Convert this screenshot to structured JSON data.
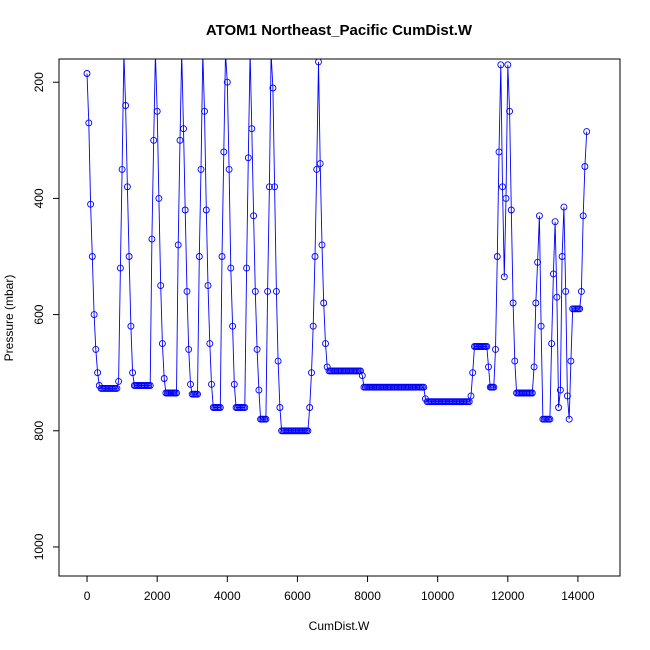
{
  "chart_data": {
    "type": "line",
    "title": "ATOM1 Northeast_Pacific CumDist.W",
    "xlabel": "CumDist.W",
    "ylabel": "Pressure (mbar)",
    "xlim": [
      -800,
      15200
    ],
    "ylim": [
      1050,
      160
    ],
    "y_reversed": true,
    "x_ticks": [
      0,
      2000,
      4000,
      6000,
      8000,
      10000,
      12000,
      14000
    ],
    "y_ticks": [
      200,
      400,
      600,
      800,
      1000
    ],
    "grid": false,
    "legend": "none",
    "marker": "open-circle",
    "series": [
      {
        "color": "#0000ff",
        "keypoints": [
          [
            0,
            185
          ],
          [
            50,
            270
          ],
          [
            100,
            410
          ],
          [
            150,
            500
          ],
          [
            200,
            600
          ],
          [
            250,
            660
          ],
          [
            300,
            700
          ],
          [
            350,
            722
          ],
          [
            400,
            727
          ],
          [
            850,
            727
          ],
          [
            900,
            715
          ],
          [
            950,
            520
          ],
          [
            1000,
            350
          ],
          [
            1050,
            150
          ],
          [
            1100,
            240
          ],
          [
            1150,
            380
          ],
          [
            1200,
            500
          ],
          [
            1250,
            620
          ],
          [
            1300,
            700
          ],
          [
            1350,
            722
          ],
          [
            1800,
            722
          ],
          [
            1850,
            470
          ],
          [
            1900,
            300
          ],
          [
            1950,
            150
          ],
          [
            2000,
            250
          ],
          [
            2050,
            400
          ],
          [
            2100,
            550
          ],
          [
            2150,
            650
          ],
          [
            2200,
            710
          ],
          [
            2250,
            735
          ],
          [
            2550,
            735
          ],
          [
            2600,
            480
          ],
          [
            2650,
            300
          ],
          [
            2700,
            150
          ],
          [
            2750,
            280
          ],
          [
            2800,
            420
          ],
          [
            2850,
            560
          ],
          [
            2900,
            660
          ],
          [
            2950,
            720
          ],
          [
            3000,
            737
          ],
          [
            3150,
            737
          ],
          [
            3200,
            500
          ],
          [
            3250,
            350
          ],
          [
            3300,
            150
          ],
          [
            3350,
            250
          ],
          [
            3400,
            420
          ],
          [
            3450,
            550
          ],
          [
            3500,
            650
          ],
          [
            3550,
            720
          ],
          [
            3600,
            760
          ],
          [
            3800,
            760
          ],
          [
            3850,
            500
          ],
          [
            3900,
            320
          ],
          [
            3950,
            150
          ],
          [
            4000,
            200
          ],
          [
            4050,
            350
          ],
          [
            4100,
            520
          ],
          [
            4150,
            620
          ],
          [
            4200,
            720
          ],
          [
            4250,
            760
          ],
          [
            4500,
            760
          ],
          [
            4550,
            520
          ],
          [
            4600,
            330
          ],
          [
            4650,
            150
          ],
          [
            4700,
            280
          ],
          [
            4750,
            430
          ],
          [
            4800,
            560
          ],
          [
            4850,
            660
          ],
          [
            4900,
            730
          ],
          [
            4950,
            780
          ],
          [
            5100,
            780
          ],
          [
            5150,
            560
          ],
          [
            5200,
            380
          ],
          [
            5250,
            150
          ],
          [
            5300,
            210
          ],
          [
            5350,
            380
          ],
          [
            5400,
            560
          ],
          [
            5450,
            680
          ],
          [
            5500,
            760
          ],
          [
            5550,
            800
          ],
          [
            6300,
            800
          ],
          [
            6350,
            760
          ],
          [
            6400,
            700
          ],
          [
            6450,
            620
          ],
          [
            6500,
            500
          ],
          [
            6550,
            350
          ],
          [
            6600,
            165
          ],
          [
            6650,
            340
          ],
          [
            6700,
            480
          ],
          [
            6750,
            580
          ],
          [
            6800,
            650
          ],
          [
            6850,
            690
          ],
          [
            6900,
            697
          ],
          [
            7800,
            697
          ],
          [
            7850,
            705
          ],
          [
            7900,
            725
          ],
          [
            9600,
            725
          ],
          [
            9650,
            745
          ],
          [
            9700,
            750
          ],
          [
            10900,
            750
          ],
          [
            10950,
            740
          ],
          [
            11000,
            700
          ],
          [
            11050,
            655
          ],
          [
            11400,
            655
          ],
          [
            11450,
            690
          ],
          [
            11500,
            725
          ],
          [
            11600,
            725
          ],
          [
            11650,
            660
          ],
          [
            11700,
            500
          ],
          [
            11750,
            320
          ],
          [
            11800,
            170
          ],
          [
            11850,
            380
          ],
          [
            11900,
            535
          ],
          [
            11950,
            400
          ],
          [
            12000,
            170
          ],
          [
            12050,
            250
          ],
          [
            12100,
            420
          ],
          [
            12150,
            580
          ],
          [
            12200,
            680
          ],
          [
            12250,
            735
          ],
          [
            12700,
            735
          ],
          [
            12750,
            690
          ],
          [
            12800,
            580
          ],
          [
            12850,
            510
          ],
          [
            12900,
            430
          ],
          [
            12950,
            620
          ],
          [
            13000,
            780
          ],
          [
            13200,
            780
          ],
          [
            13250,
            650
          ],
          [
            13300,
            530
          ],
          [
            13350,
            440
          ],
          [
            13400,
            570
          ],
          [
            13450,
            760
          ],
          [
            13500,
            730
          ],
          [
            13550,
            500
          ],
          [
            13600,
            415
          ],
          [
            13650,
            560
          ],
          [
            13700,
            740
          ],
          [
            13750,
            780
          ],
          [
            13800,
            680
          ],
          [
            13850,
            590
          ],
          [
            14050,
            590
          ],
          [
            14100,
            560
          ],
          [
            14150,
            430
          ],
          [
            14200,
            345
          ],
          [
            14250,
            285
          ]
        ]
      }
    ]
  }
}
